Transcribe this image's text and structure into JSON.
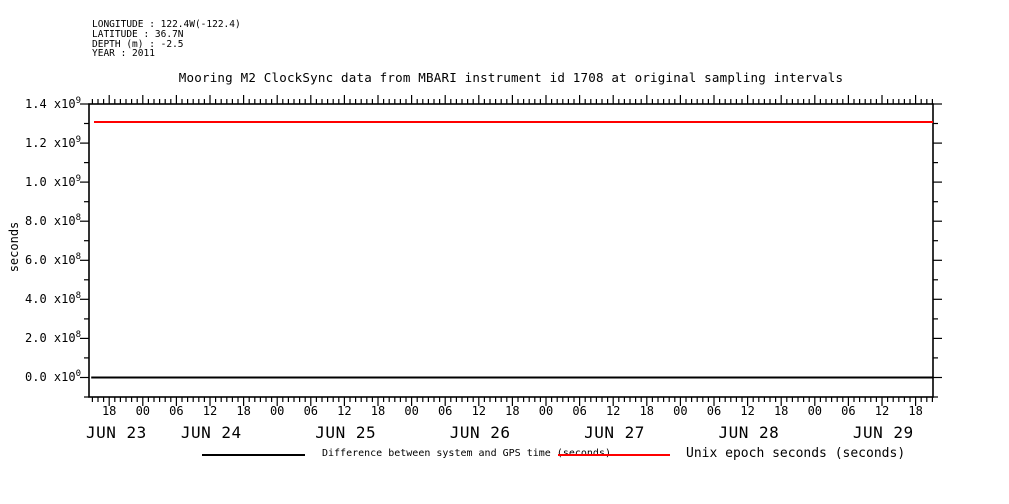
{
  "header": {
    "lines": [
      "LONGITUDE : 122.4W(-122.4)",
      "LATITUDE : 36.7N",
      "DEPTH (m) : -2.5",
      "YEAR : 2011"
    ]
  },
  "chart_data": {
    "type": "line",
    "title": "Mooring M2 ClockSync data from MBARI instrument id 1708 at original sampling intervals",
    "xlabel": "",
    "ylabel": "seconds",
    "grid": false,
    "legend_position": "bottom",
    "x_axis": {
      "unit": "hours since JUN 23 2011 00:00",
      "domain_hours_from_jun23_00": [
        14.4,
        165.1
      ],
      "minor_tick_step_hours": 1,
      "major_tick_step_hours": 6,
      "hour_tick_labels": [
        {
          "hour": 18,
          "label": "18"
        },
        {
          "hour": 24,
          "label": "00"
        },
        {
          "hour": 30,
          "label": "06"
        },
        {
          "hour": 36,
          "label": "12"
        },
        {
          "hour": 42,
          "label": "18"
        },
        {
          "hour": 48,
          "label": "00"
        },
        {
          "hour": 54,
          "label": "06"
        },
        {
          "hour": 60,
          "label": "12"
        },
        {
          "hour": 66,
          "label": "18"
        },
        {
          "hour": 72,
          "label": "00"
        },
        {
          "hour": 78,
          "label": "06"
        },
        {
          "hour": 84,
          "label": "12"
        },
        {
          "hour": 90,
          "label": "18"
        },
        {
          "hour": 96,
          "label": "00"
        },
        {
          "hour": 102,
          "label": "06"
        },
        {
          "hour": 108,
          "label": "12"
        },
        {
          "hour": 114,
          "label": "18"
        },
        {
          "hour": 120,
          "label": "00"
        },
        {
          "hour": 126,
          "label": "06"
        },
        {
          "hour": 132,
          "label": "12"
        },
        {
          "hour": 138,
          "label": "18"
        },
        {
          "hour": 144,
          "label": "00"
        },
        {
          "hour": 150,
          "label": "06"
        },
        {
          "hour": 156,
          "label": "12"
        },
        {
          "hour": 162,
          "label": "18"
        }
      ],
      "day_labels": [
        {
          "label": "JUN 23",
          "noon_hour": 12
        },
        {
          "label": "JUN 24",
          "noon_hour": 36
        },
        {
          "label": "JUN 25",
          "noon_hour": 60
        },
        {
          "label": "JUN 26",
          "noon_hour": 84
        },
        {
          "label": "JUN 27",
          "noon_hour": 108
        },
        {
          "label": "JUN 28",
          "noon_hour": 132
        },
        {
          "label": "JUN 29",
          "noon_hour": 156
        }
      ]
    },
    "y_axis": {
      "domain": [
        -100000000,
        1400000000
      ],
      "minor_tick_step": 100000000,
      "major_tick_step": 200000000,
      "ticks": [
        {
          "value": 0,
          "mantissa": "0.0",
          "exponent": "0"
        },
        {
          "value": 200000000,
          "mantissa": "2.0",
          "exponent": "8"
        },
        {
          "value": 400000000,
          "mantissa": "4.0",
          "exponent": "8"
        },
        {
          "value": 600000000,
          "mantissa": "6.0",
          "exponent": "8"
        },
        {
          "value": 800000000,
          "mantissa": "8.0",
          "exponent": "8"
        },
        {
          "value": 1000000000,
          "mantissa": "1.0",
          "exponent": "9"
        },
        {
          "value": 1200000000,
          "mantissa": "1.2",
          "exponent": "9"
        },
        {
          "value": 1400000000,
          "mantissa": "1.4",
          "exponent": "9"
        }
      ]
    },
    "series": [
      {
        "name": "Difference between system and GPS time (seconds)",
        "color": "#000000",
        "shape": "constant-horizontal-line",
        "constant_value": 0,
        "start_hour": 14.8,
        "end_hour": 165.1
      },
      {
        "name": "Unix epoch seconds (seconds)",
        "color": "#ff0000",
        "shape": "constant-horizontal-line",
        "constant_value": 1308000000,
        "start_hour": 15.3,
        "end_hour": 165.1
      }
    ]
  },
  "legend": {
    "entries": [
      {
        "label": "Difference between system and GPS time (seconds)",
        "color": "#000000"
      },
      {
        "label": "Unix epoch seconds (seconds)",
        "color": "#ff0000"
      }
    ]
  }
}
